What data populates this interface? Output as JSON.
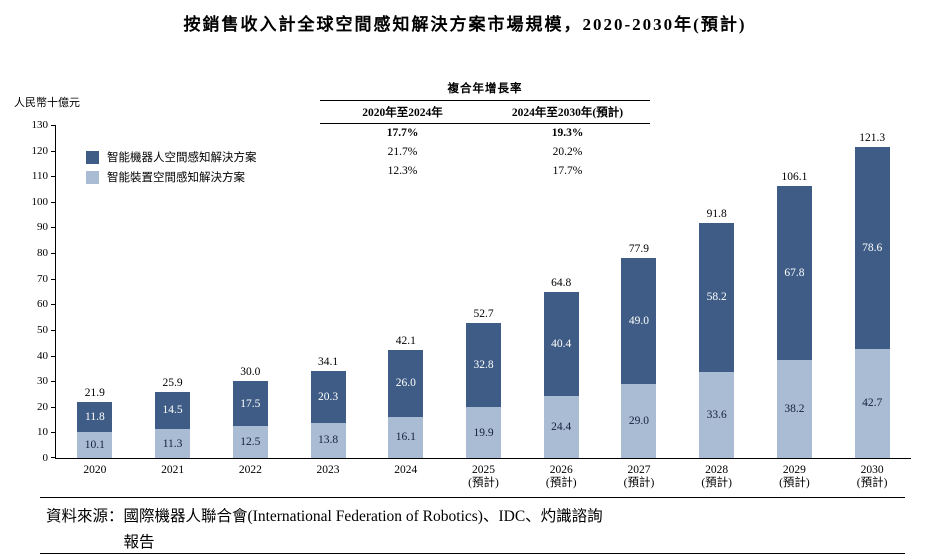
{
  "title": "按銷售收入計全球空間感知解決方案市場規模，2020-2030年(預計)",
  "y_axis_unit": "人民幣十億元",
  "legend": [
    {
      "label": "智能機器人空間感知解決方案",
      "color": "#3e5c85"
    },
    {
      "label": "智能裝置空間感知解決方案",
      "color": "#a9bcd4"
    }
  ],
  "cagr_table": {
    "title": "複合年增長率",
    "columns": [
      "2020年至2024年",
      "2024年至2030年(預計)"
    ],
    "rows": [
      [
        "17.7%",
        "19.3%"
      ],
      [
        "21.7%",
        "20.2%"
      ],
      [
        "12.3%",
        "17.7%"
      ]
    ]
  },
  "chart_data": {
    "type": "bar",
    "stacked": true,
    "title": "按銷售收入計全球空間感知解決方案市場規模，2020-2030年(預計)",
    "ylabel": "人民幣十億元",
    "ylim": [
      0,
      130
    ],
    "ytick_step": 10,
    "grid": false,
    "legend_position": "upper-left",
    "categories": [
      {
        "year": "2020",
        "note": ""
      },
      {
        "year": "2021",
        "note": ""
      },
      {
        "year": "2022",
        "note": ""
      },
      {
        "year": "2023",
        "note": ""
      },
      {
        "year": "2024",
        "note": ""
      },
      {
        "year": "2025",
        "note": "(預計)"
      },
      {
        "year": "2026",
        "note": "(預計)"
      },
      {
        "year": "2027",
        "note": "(預計)"
      },
      {
        "year": "2028",
        "note": "(預計)"
      },
      {
        "year": "2029",
        "note": "(預計)"
      },
      {
        "year": "2030",
        "note": "(預計)"
      }
    ],
    "series": [
      {
        "name": "智能機器人空間感知解決方案",
        "color": "#3e5c85",
        "label_color": "#ffffff",
        "values": [
          "11.8",
          "14.5",
          "17.5",
          "20.3",
          "26.0",
          "32.8",
          "40.4",
          "49.0",
          "58.2",
          "67.8",
          "78.6"
        ]
      },
      {
        "name": "智能裝置空間感知解決方案",
        "color": "#a9bcd4",
        "label_color": "#14213d",
        "values": [
          "10.1",
          "11.3",
          "12.5",
          "13.8",
          "16.1",
          "19.9",
          "24.4",
          "29.0",
          "33.6",
          "38.2",
          "42.7"
        ]
      }
    ],
    "totals": [
      "21.9",
      "25.9",
      "30.0",
      "34.1",
      "42.1",
      "52.7",
      "64.8",
      "77.9",
      "91.8",
      "106.1",
      "121.3"
    ]
  },
  "source": {
    "label": "資料來源：",
    "line1": "國際機器人聯合會(International Federation of Robotics)、IDC、灼識諮詢",
    "line2": "報告"
  }
}
